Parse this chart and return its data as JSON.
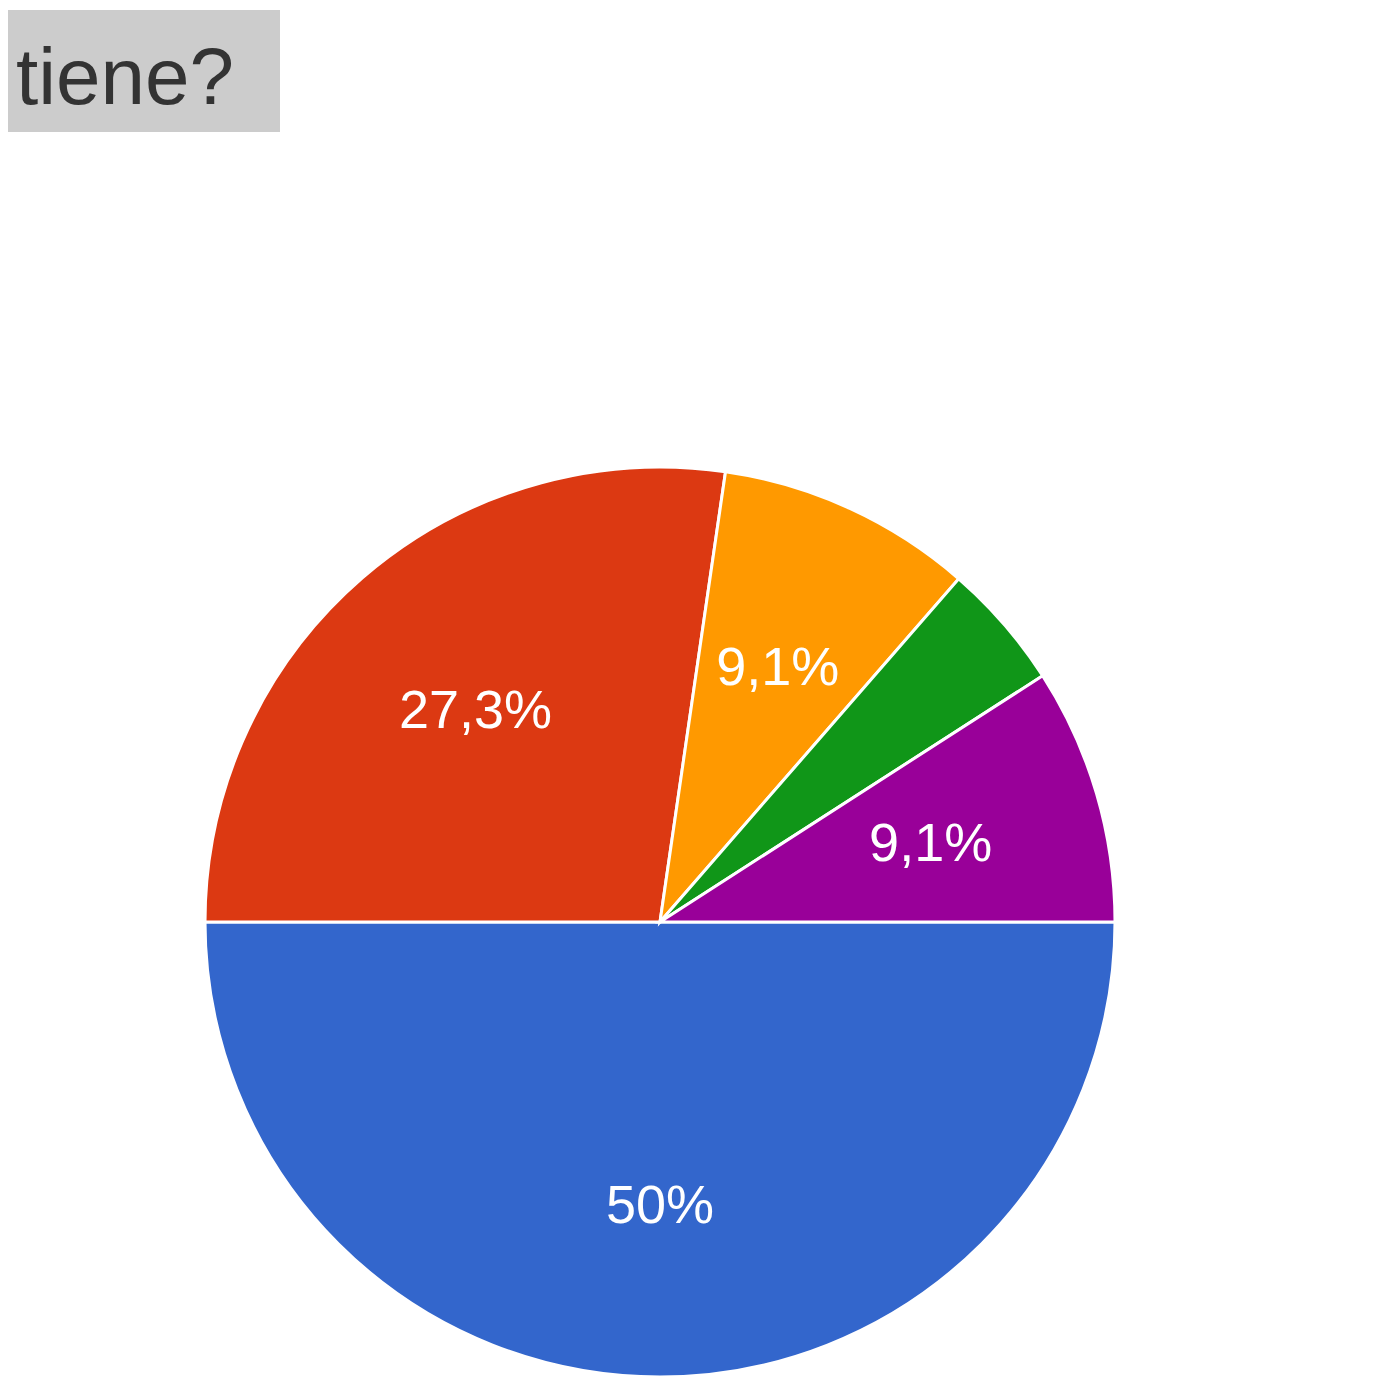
{
  "chart_data": {
    "type": "pie",
    "title": "tiene?",
    "categories": [
      null,
      null,
      null,
      null,
      null
    ],
    "values": [
      50,
      27.3,
      9.1,
      4.5,
      9.1
    ],
    "colors": [
      "#3366cc",
      "#dc3912",
      "#ff9900",
      "#109618",
      "#990099"
    ],
    "value_labels": [
      "50%",
      "27,3%",
      "9,1%",
      null,
      "9,1%"
    ]
  }
}
